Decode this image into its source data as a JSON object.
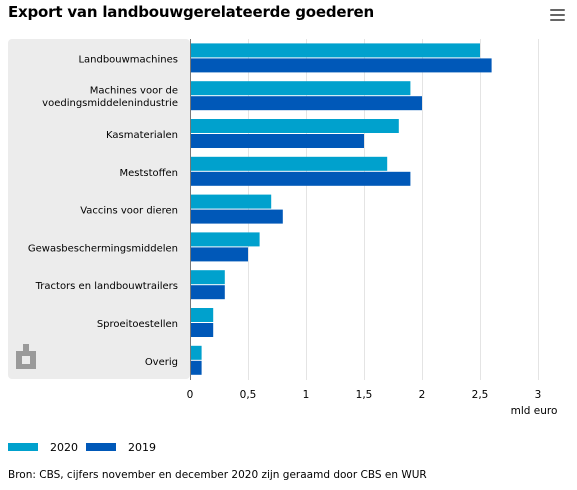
{
  "title": "Export van landbouwgerelateerde goederen",
  "menu_icon": "hamburger-menu-icon",
  "source": "Bron: CBS, cijfers november en december 2020 zijn geraamd door CBS en WUR",
  "legend": [
    {
      "name": "2020",
      "color": "#00a1cd"
    },
    {
      "name": "2019",
      "color": "#0058b8"
    }
  ],
  "chart_data": {
    "type": "bar",
    "orientation": "horizontal",
    "categories": [
      "Landbouwmachines",
      "Machines voor de voedingsmiddelenindustrie",
      "Kasmaterialen",
      "Meststoffen",
      "Vaccins voor dieren",
      "Gewasbeschermingsmiddelen",
      "Tractors en landbouwtrailers",
      "Sproeitoestellen",
      "Overig"
    ],
    "series": [
      {
        "name": "2020",
        "color": "#00a1cd",
        "values": [
          2.5,
          1.9,
          1.8,
          1.7,
          0.7,
          0.6,
          0.3,
          0.2,
          0.1
        ]
      },
      {
        "name": "2019",
        "color": "#0058b8",
        "values": [
          2.6,
          2.0,
          1.5,
          1.9,
          0.8,
          0.5,
          0.3,
          0.2,
          0.1
        ]
      }
    ],
    "xlabel": "mld euro",
    "xlim": [
      0,
      3
    ],
    "xticks": [
      "0",
      "0,5",
      "1",
      "1,5",
      "2",
      "2,5",
      "3"
    ],
    "grid": true,
    "legend_position": "bottom-left"
  }
}
